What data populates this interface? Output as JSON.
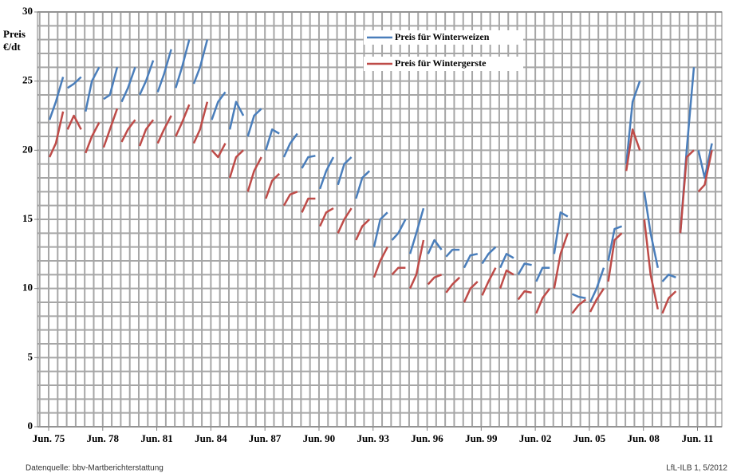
{
  "chart_data": {
    "type": "line",
    "ylabel_lines": [
      "Preis",
      "€/dt"
    ],
    "source": "Datenquelle: bbv-Martberichterstattung",
    "credit": "LfL-ILB 1, 5/2012",
    "legend": "top",
    "grid": true,
    "grid_step": {
      "x": 0.5,
      "y": 1
    },
    "xlim": [
      1974.88,
      2012.85
    ],
    "ylim": [
      0,
      30
    ],
    "yticks": [
      0,
      5,
      10,
      15,
      20,
      25,
      30
    ],
    "xticks": [
      {
        "value": 1975.5,
        "label": "Jun. 75"
      },
      {
        "value": 1978.5,
        "label": "Jun. 78"
      },
      {
        "value": 1981.5,
        "label": "Jun. 81"
      },
      {
        "value": 1984.5,
        "label": "Jun. 84"
      },
      {
        "value": 1987.5,
        "label": "Jun. 87"
      },
      {
        "value": 1990.5,
        "label": "Jun. 90"
      },
      {
        "value": 1993.5,
        "label": "Jun. 93"
      },
      {
        "value": 1996.5,
        "label": "Jun. 96"
      },
      {
        "value": 1999.5,
        "label": "Jun. 99"
      },
      {
        "value": 2002.5,
        "label": "Jun. 02"
      },
      {
        "value": 2005.5,
        "label": "Jun. 05"
      },
      {
        "value": 2008.5,
        "label": "Jun. 08"
      },
      {
        "value": 2011.5,
        "label": "Jun. 11"
      }
    ],
    "x": [
      1975.55,
      1975.9,
      1976.3,
      1976.45,
      1976.55,
      1976.9,
      1977.3,
      1977.45,
      1977.55,
      1977.9,
      1978.3,
      1978.45,
      1978.55,
      1978.9,
      1979.3,
      1979.45,
      1979.55,
      1979.9,
      1980.3,
      1980.45,
      1980.55,
      1980.9,
      1981.3,
      1981.45,
      1981.55,
      1981.9,
      1982.3,
      1982.45,
      1982.55,
      1982.9,
      1983.3,
      1983.45,
      1983.55,
      1983.9,
      1984.3,
      1984.45,
      1984.55,
      1984.9,
      1985.3,
      1985.45,
      1985.55,
      1985.9,
      1986.3,
      1986.45,
      1986.55,
      1986.9,
      1987.3,
      1987.45,
      1987.55,
      1987.9,
      1988.3,
      1988.45,
      1988.55,
      1988.9,
      1989.3,
      1989.45,
      1989.55,
      1989.9,
      1990.3,
      1990.45,
      1990.55,
      1990.9,
      1991.3,
      1991.45,
      1991.55,
      1991.9,
      1992.3,
      1992.45,
      1992.55,
      1992.9,
      1993.3,
      1993.45,
      1993.55,
      1993.9,
      1994.3,
      1994.45,
      1994.55,
      1994.9,
      1995.3,
      1995.45,
      1995.55,
      1995.9,
      1996.3,
      1996.45,
      1996.55,
      1996.9,
      1997.3,
      1997.45,
      1997.55,
      1997.9,
      1998.3,
      1998.45,
      1998.55,
      1998.9,
      1999.3,
      1999.45,
      1999.55,
      1999.9,
      2000.3,
      2000.45,
      2000.55,
      2000.9,
      2001.3,
      2001.45,
      2001.55,
      2001.9,
      2002.3,
      2002.45,
      2002.55,
      2002.9,
      2003.3,
      2003.45,
      2003.55,
      2003.9,
      2004.3,
      2004.45,
      2004.55,
      2004.9,
      2005.3,
      2005.45,
      2005.55,
      2005.9,
      2006.3,
      2006.45,
      2006.55,
      2006.9,
      2007.3,
      2007.45,
      2007.55,
      2007.9,
      2008.3,
      2008.45,
      2008.55,
      2008.9,
      2009.3,
      2009.45,
      2009.55,
      2009.9,
      2010.3,
      2010.45,
      2010.55,
      2010.9,
      2011.3,
      2011.45,
      2011.55,
      2011.9,
      2012.3,
      2012.45
    ],
    "series": [
      {
        "name": "Preis für Winterweizen",
        "color": "#4a7ebb",
        "values": [
          22.2,
          23.5,
          25.3,
          null,
          24.5,
          24.8,
          25.3,
          null,
          22.8,
          25,
          26,
          null,
          23.7,
          24,
          26,
          null,
          23.5,
          24.5,
          26,
          null,
          24,
          25,
          26.5,
          null,
          24.2,
          25.5,
          27.3,
          null,
          24.5,
          26,
          28,
          null,
          24.8,
          26,
          28,
          null,
          22.2,
          23.5,
          24.2,
          null,
          21.5,
          23.5,
          22.5,
          null,
          21,
          22.5,
          23,
          null,
          20,
          21.5,
          21.2,
          null,
          19.5,
          20.5,
          21.2,
          null,
          18.7,
          19.5,
          19.6,
          null,
          17.2,
          18.5,
          19.5,
          null,
          17.5,
          19,
          19.5,
          null,
          16.5,
          18,
          18.5,
          null,
          13,
          15,
          15.5,
          null,
          13.5,
          14,
          15,
          null,
          12.5,
          14,
          15.8,
          null,
          12.5,
          13.5,
          12.8,
          null,
          12.3,
          12.8,
          12.8,
          null,
          11.5,
          12.4,
          12.5,
          null,
          11.8,
          12.5,
          13,
          null,
          11.5,
          12.5,
          12.2,
          null,
          11,
          11.8,
          11.7,
          null,
          10.5,
          11.5,
          11.5,
          null,
          12.5,
          15.5,
          15.2,
          null,
          9.6,
          9.4,
          9.3,
          null,
          9,
          10,
          11.5,
          null,
          12,
          14.3,
          14.5,
          null,
          19,
          23.5,
          25,
          null,
          17,
          14,
          11.5,
          null,
          10.5,
          11,
          10.8,
          null,
          14,
          20,
          26,
          null,
          20,
          18,
          20.5,
          null
        ]
      },
      {
        "name": "Preis für Wintergerste",
        "color": "#be4b48",
        "values": [
          19.5,
          20.5,
          22.8,
          null,
          21.5,
          22.5,
          21.5,
          null,
          19.8,
          21,
          22,
          null,
          20.2,
          21.5,
          23,
          null,
          20.6,
          21.5,
          22.2,
          null,
          20.3,
          21.5,
          22.2,
          null,
          20.5,
          21.5,
          22.5,
          null,
          21,
          22,
          23.3,
          null,
          20.5,
          21.5,
          23.5,
          null,
          20,
          19.5,
          20.5,
          null,
          18,
          19.5,
          20,
          null,
          17,
          18.5,
          19.5,
          null,
          16.5,
          17.8,
          18.3,
          null,
          16,
          16.8,
          17,
          null,
          15.5,
          16.5,
          16.5,
          null,
          14.5,
          15.5,
          15.8,
          null,
          14,
          15,
          15.8,
          null,
          13.5,
          14.5,
          15,
          null,
          10.8,
          12,
          13,
          null,
          11,
          11.5,
          11.5,
          null,
          10,
          11,
          13.5,
          null,
          10.3,
          10.8,
          11,
          null,
          9.7,
          10.3,
          10.8,
          null,
          9,
          10,
          10.5,
          null,
          9.5,
          10.5,
          11.5,
          null,
          10,
          11.3,
          11,
          null,
          9.2,
          9.8,
          9.7,
          null,
          8.2,
          9.3,
          10,
          null,
          10,
          12.5,
          14,
          null,
          8.2,
          8.8,
          9.2,
          null,
          8.3,
          9.2,
          10,
          null,
          10.5,
          13.5,
          14,
          null,
          18.5,
          21.5,
          20,
          null,
          15,
          11,
          8.5,
          null,
          8.2,
          9.3,
          9.8,
          null,
          14,
          19.5,
          20,
          null,
          17,
          17.5,
          20,
          null
        ]
      }
    ]
  }
}
